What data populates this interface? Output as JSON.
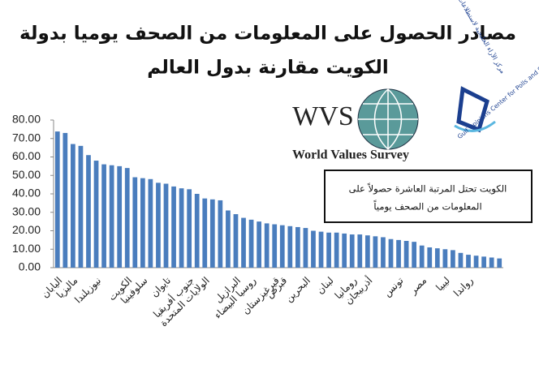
{
  "chart_data": {
    "type": "bar",
    "title": [
      "مصادر الحصول على المعلومات من الصحف يوميا بدولة",
      "الكويت مقارنة بدول العالم"
    ],
    "annotation": [
      "الكويت تحتل المرتبة العاشرة حصولاً على",
      "المعلومات من الصحف يومياً"
    ],
    "categories": [
      "اليابان",
      null,
      "ماليزيا",
      null,
      null,
      "نيوزيلندا",
      null,
      null,
      null,
      "الكويت",
      null,
      "سلوفينيا",
      null,
      null,
      "تايوان",
      null,
      null,
      "جنوب أفريقيا",
      null,
      "الولايات المتحدة",
      null,
      null,
      null,
      "البرازيل",
      null,
      "روسيا البيضاء",
      null,
      null,
      "قيرغيزستان",
      "قبرص",
      null,
      null,
      "البحرين",
      null,
      null,
      "لبنان",
      null,
      null,
      "رومانيا",
      null,
      "أذربيجان",
      null,
      null,
      null,
      "تونس",
      null,
      null,
      "مصر",
      null,
      null,
      "ليبيا",
      null,
      null,
      "رواندا",
      null,
      null,
      null,
      null
    ],
    "values": [
      73.8,
      73,
      67,
      66,
      61,
      58,
      56,
      55.5,
      55,
      54,
      49,
      48.5,
      48,
      46,
      45.5,
      44,
      43,
      42.5,
      40,
      37.5,
      37,
      36.5,
      31,
      29,
      27,
      26,
      25,
      24,
      23.5,
      23,
      22.5,
      22,
      21.5,
      20,
      19.5,
      19,
      19,
      18.5,
      18,
      18,
      17.5,
      17,
      16.5,
      15.5,
      15,
      14.5,
      14,
      12,
      11,
      10.5,
      10,
      9.5,
      8,
      7,
      6.5,
      6,
      5.5,
      5
    ],
    "color": "#4a7dbd",
    "ylim": [
      0,
      80
    ],
    "yticks": [
      {
        "value": 0,
        "label": "0.00"
      },
      {
        "value": 10,
        "label": "10.00"
      },
      {
        "value": 20,
        "label": "20.00"
      },
      {
        "value": 30,
        "label": "30.00"
      },
      {
        "value": 40,
        "label": "40.00"
      },
      {
        "value": 50,
        "label": "50.00"
      },
      {
        "value": 60,
        "label": "60.00"
      },
      {
        "value": 70,
        "label": "70.00"
      },
      {
        "value": 80,
        "label": "80.00"
      }
    ]
  },
  "logos": {
    "wvs": "WVS",
    "wvs_name": "World Values Survey",
    "goc_ar": "مركز الآراء الخليجية لاستطلاعات الرأي والإحصاء",
    "goc_en": "Gulf Opinions Center for Polls and Statistics"
  }
}
